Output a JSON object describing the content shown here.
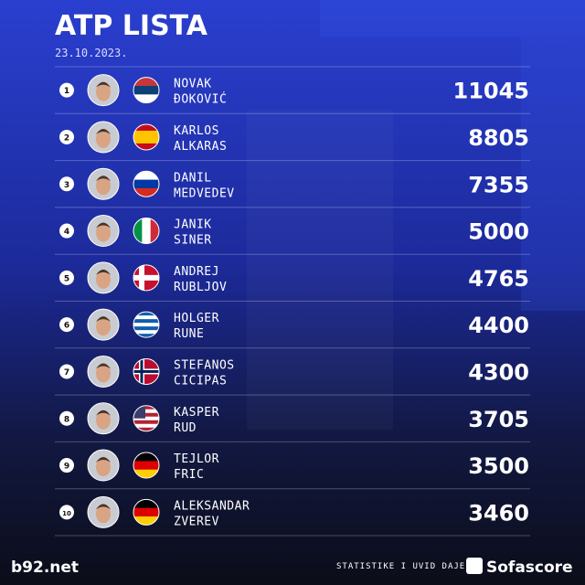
{
  "header": {
    "title": "ATP LISTA",
    "date": "23.10.2023."
  },
  "table": {
    "rows": [
      {
        "rank": 1,
        "first": "NOVAK",
        "last": "ĐOKOVIĆ",
        "points": 11045
      },
      {
        "rank": 2,
        "first": "KARLOS",
        "last": "ALKARAS",
        "points": 8805
      },
      {
        "rank": 3,
        "first": "DANIL",
        "last": "MEDVEDEV",
        "points": 7355
      },
      {
        "rank": 4,
        "first": "JANIK",
        "last": "SINER",
        "points": 5000
      },
      {
        "rank": 5,
        "first": "ANDREJ",
        "last": "RUBLJOV",
        "points": 4765
      },
      {
        "rank": 6,
        "first": "HOLGER",
        "last": "RUNE",
        "points": 4400
      },
      {
        "rank": 7,
        "first": "STEFANOS",
        "last": "CICIPAS",
        "points": 4300
      },
      {
        "rank": 8,
        "first": "KASPER",
        "last": "RUD",
        "points": 3705
      },
      {
        "rank": 9,
        "first": "TEJLOR",
        "last": "FRIC",
        "points": 3500
      },
      {
        "rank": 10,
        "first": "ALEKSANDAR",
        "last": "ZVEREV",
        "points": 3460
      }
    ]
  },
  "footer": {
    "source": "b92.net",
    "credit": "STATISTIKE I UVID DAJE",
    "brand": "Sofascore"
  }
}
